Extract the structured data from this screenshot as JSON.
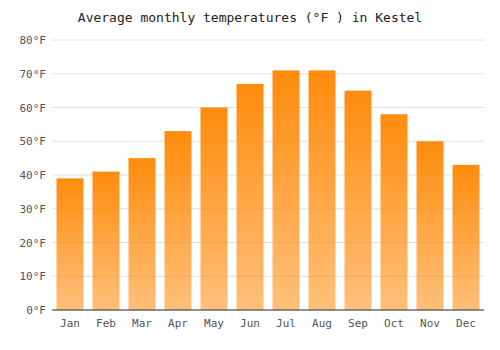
{
  "chart_data": {
    "type": "bar",
    "title": "Average monthly temperatures (°F ) in Kestel",
    "categories": [
      "Jan",
      "Feb",
      "Mar",
      "Apr",
      "May",
      "Jun",
      "Jul",
      "Aug",
      "Sep",
      "Oct",
      "Nov",
      "Dec"
    ],
    "values": [
      39,
      41,
      45,
      53,
      60,
      67,
      71,
      71,
      65,
      58,
      50,
      43
    ],
    "color": "#ff8c0d",
    "ylim": [
      0,
      80
    ],
    "yticks": [
      {
        "value": 0,
        "label": "0°F"
      },
      {
        "value": 10,
        "label": "10°F"
      },
      {
        "value": 20,
        "label": "20°F"
      },
      {
        "value": 30,
        "label": "30°F"
      },
      {
        "value": 40,
        "label": "40°F"
      },
      {
        "value": 50,
        "label": "50°F"
      },
      {
        "value": 60,
        "label": "60°F"
      },
      {
        "value": 70,
        "label": "70°F"
      },
      {
        "value": 80,
        "label": "80°F"
      }
    ],
    "grid": true
  }
}
